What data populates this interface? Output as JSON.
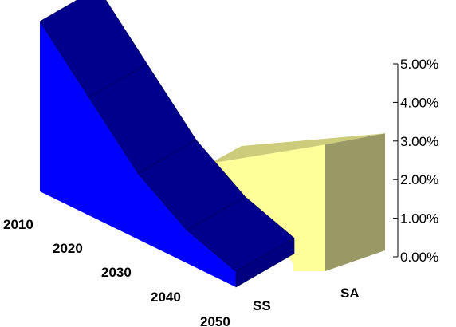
{
  "chart_data": {
    "type": "area",
    "categories": [
      "2010",
      "2020",
      "2030",
      "2040",
      "2050"
    ],
    "series": [
      {
        "name": "SS",
        "values": [
          4.9,
          3.4,
          1.9,
          0.95,
          0.45
        ]
      },
      {
        "name": "SA",
        "values": [
          2.5,
          2.6,
          2.75,
          2.9,
          3.05
        ]
      }
    ],
    "yticks": [
      "0.00%",
      "1.00%",
      "2.00%",
      "3.00%",
      "4.00%",
      "5.00%"
    ],
    "ylim": [
      0,
      5
    ],
    "grid": false,
    "colors": {
      "ss_front": "#0000ff",
      "ss_top": "#00008c",
      "ss_end": "#000080",
      "sa_front": "#ffff99",
      "sa_top": "#cccc7a",
      "sa_end": "#999966"
    }
  }
}
